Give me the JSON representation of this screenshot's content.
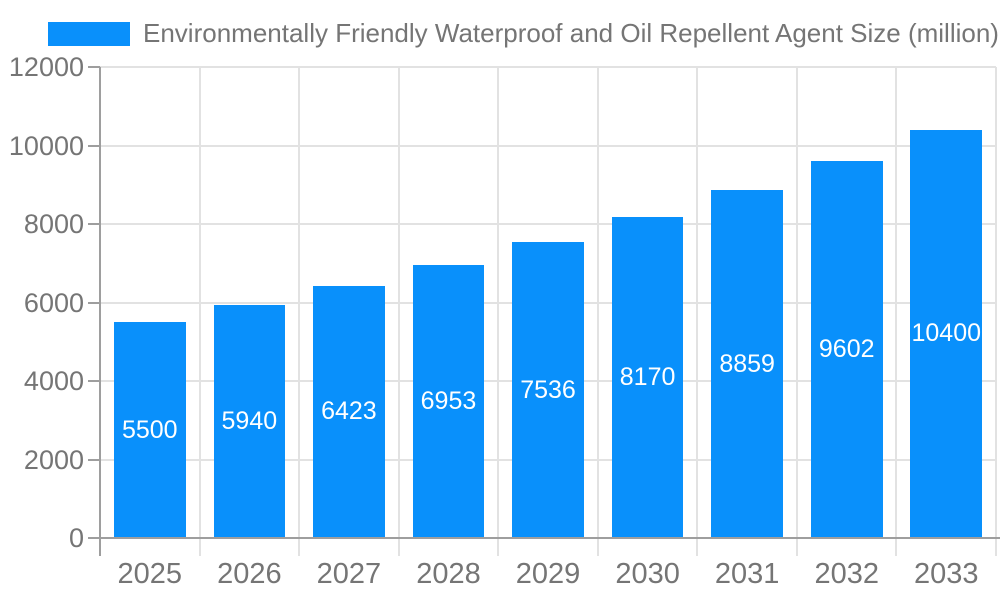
{
  "chart_data": {
    "type": "bar",
    "title": "Environmentally Friendly Waterproof and Oil Repellent Agent Size (million)",
    "categories": [
      "2025",
      "2026",
      "2027",
      "2028",
      "2029",
      "2030",
      "2031",
      "2032",
      "2033"
    ],
    "values": [
      5500,
      5940,
      6423,
      6953,
      7536,
      8170,
      8859,
      9602,
      10400
    ],
    "xlabel": "",
    "ylabel": "",
    "ylim": [
      0,
      12000
    ],
    "yticks": [
      0,
      2000,
      4000,
      6000,
      8000,
      10000,
      12000
    ],
    "grid": true,
    "legend_position": "top-left",
    "bar_label_position": "inside-center",
    "colors": {
      "bar": "#0990fb",
      "bar_label_text": "#ffffff",
      "text": "#757575",
      "grid": "#e2e2e2",
      "axis": "#9e9e9e",
      "background": "#ffffff"
    }
  }
}
